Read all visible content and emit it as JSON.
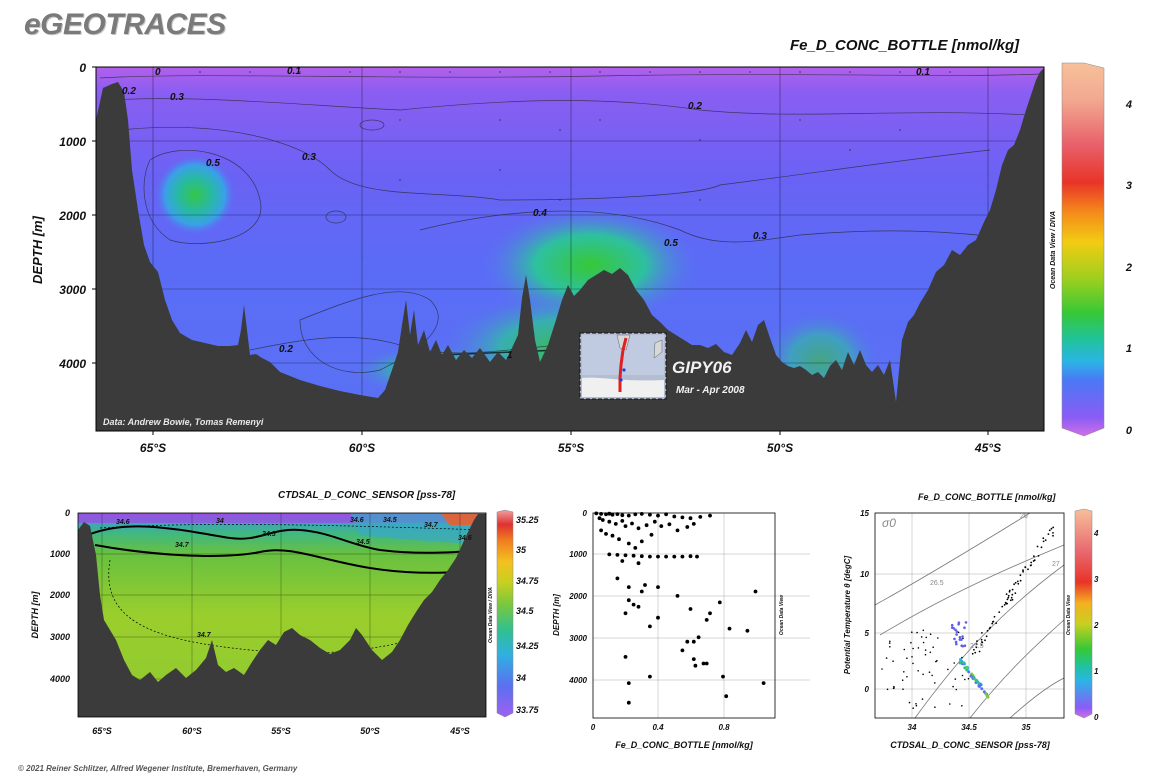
{
  "brand": "eGEOTRACES",
  "copyright": "© 2021 Reiner Schlitzer, Alfred Wegener Institute, Bremerhaven, Germany",
  "inset": {
    "cruise": "GIPY06",
    "dates": "Mar - Apr 2008"
  },
  "credit": "Data: Andrew Bowie, Tomas Remenyi",
  "odv_label": "Ocean Data View / DIVA",
  "chart_data": [
    {
      "type": "heatmap",
      "title": "Fe_D_CONC_BOTTLE [nmol/kg]",
      "ylabel": "DEPTH [m]",
      "x_ticks": [
        "65°S",
        "60°S",
        "55°S",
        "50°S",
        "45°S"
      ],
      "y_ticks": [
        "0",
        "1000",
        "2000",
        "3000",
        "4000"
      ],
      "ylim": [
        0,
        4900
      ],
      "colorbar_ticks": [
        "0",
        "1",
        "2",
        "3",
        "4"
      ],
      "colorbar_range": [
        0,
        4.5
      ],
      "contour_labels": [
        "0.1",
        "0.1",
        "0.2",
        "0.2",
        "0.2",
        "0.3",
        "0.3",
        "0.3",
        "0.4",
        "0.5",
        "0.5",
        "1",
        "0"
      ]
    },
    {
      "type": "heatmap",
      "title": "CTDSAL_D_CONC_SENSOR [pss-78]",
      "ylabel": "DEPTH [m]",
      "x_ticks": [
        "65°S",
        "60°S",
        "55°S",
        "50°S",
        "45°S"
      ],
      "y_ticks": [
        "0",
        "1000",
        "2000",
        "3000",
        "4000"
      ],
      "colorbar_ticks": [
        "35.25",
        "35",
        "34.75",
        "34.5",
        "34.25",
        "34",
        "33.75"
      ],
      "contour_labels": [
        "34.6",
        "34",
        "34.5",
        "34.7",
        "34.5",
        "34.6",
        "34.7",
        "34.5",
        "34.6",
        "34.7"
      ]
    },
    {
      "type": "scatter",
      "xlabel": "Fe_D_CONC_BOTTLE [nmol/kg]",
      "ylabel": "DEPTH [m]",
      "xlim": [
        0,
        1.1
      ],
      "ylim": [
        0,
        4700
      ],
      "x_ticks": [
        "0",
        "0.4",
        "0.8"
      ],
      "y_ticks": [
        "0",
        "1000",
        "2000",
        "3000",
        "4000"
      ],
      "points": [
        [
          0.02,
          10
        ],
        [
          0.05,
          20
        ],
        [
          0.08,
          30
        ],
        [
          0.1,
          15
        ],
        [
          0.12,
          40
        ],
        [
          0.15,
          25
        ],
        [
          0.18,
          50
        ],
        [
          0.22,
          60
        ],
        [
          0.26,
          30
        ],
        [
          0.3,
          20
        ],
        [
          0.35,
          40
        ],
        [
          0.4,
          60
        ],
        [
          0.45,
          30
        ],
        [
          0.5,
          80
        ],
        [
          0.55,
          100
        ],
        [
          0.6,
          120
        ],
        [
          0.66,
          90
        ],
        [
          0.72,
          60
        ],
        [
          0.04,
          120
        ],
        [
          0.06,
          160
        ],
        [
          0.1,
          200
        ],
        [
          0.14,
          250
        ],
        [
          0.18,
          180
        ],
        [
          0.2,
          300
        ],
        [
          0.24,
          240
        ],
        [
          0.28,
          350
        ],
        [
          0.33,
          280
        ],
        [
          0.38,
          200
        ],
        [
          0.42,
          300
        ],
        [
          0.47,
          260
        ],
        [
          0.52,
          400
        ],
        [
          0.58,
          320
        ],
        [
          0.62,
          250
        ],
        [
          0.05,
          400
        ],
        [
          0.08,
          480
        ],
        [
          0.12,
          520
        ],
        [
          0.16,
          600
        ],
        [
          0.22,
          700
        ],
        [
          0.26,
          800
        ],
        [
          0.3,
          650
        ],
        [
          0.36,
          500
        ],
        [
          0.1,
          950
        ],
        [
          0.15,
          960
        ],
        [
          0.2,
          970
        ],
        [
          0.25,
          980
        ],
        [
          0.3,
          990
        ],
        [
          0.35,
          1000
        ],
        [
          0.4,
          1000
        ],
        [
          0.45,
          1000
        ],
        [
          0.5,
          1000
        ],
        [
          0.55,
          1000
        ],
        [
          0.6,
          990
        ],
        [
          0.64,
          1000
        ],
        [
          0.18,
          1100
        ],
        [
          0.28,
          1150
        ],
        [
          0.15,
          1500
        ],
        [
          0.22,
          1700
        ],
        [
          0.3,
          1800
        ],
        [
          0.4,
          1700
        ],
        [
          0.52,
          1900
        ],
        [
          0.32,
          1650
        ],
        [
          0.22,
          2000
        ],
        [
          0.25,
          2100
        ],
        [
          0.28,
          2150
        ],
        [
          0.2,
          2300
        ],
        [
          0.6,
          2200
        ],
        [
          0.78,
          2050
        ],
        [
          0.72,
          2300
        ],
        [
          0.7,
          2450
        ],
        [
          0.84,
          2650
        ],
        [
          0.95,
          2700
        ],
        [
          0.4,
          2400
        ],
        [
          0.35,
          2600
        ],
        [
          0.58,
          2950
        ],
        [
          0.62,
          2950
        ],
        [
          0.65,
          2850
        ],
        [
          0.55,
          3150
        ],
        [
          0.62,
          3350
        ],
        [
          0.68,
          3450
        ],
        [
          0.7,
          3450
        ],
        [
          0.63,
          3500
        ],
        [
          0.8,
          3750
        ],
        [
          0.82,
          4200
        ],
        [
          1.05,
          3900
        ],
        [
          1.0,
          1800
        ],
        [
          0.35,
          3750
        ],
        [
          0.2,
          3300
        ],
        [
          0.22,
          3900
        ],
        [
          0.22,
          4350
        ]
      ]
    },
    {
      "type": "scatter",
      "xlabel": "CTDSAL_D_CONC_SENSOR [pss-78]",
      "ylabel": "Potential Temperature θ [degC]",
      "title": "Fe_D_CONC_BOTTLE [nmol/kg]",
      "xlim": [
        33.7,
        35.35
      ],
      "ylim": [
        -2,
        15
      ],
      "x_ticks": [
        "34",
        "34.5",
        "35"
      ],
      "y_ticks": [
        "15",
        "10",
        "5",
        "0"
      ],
      "density_labels": [
        "σ0",
        "26",
        "26.5",
        "27",
        "27.5"
      ],
      "colorbar_ticks": [
        "4",
        "3",
        "2",
        "1",
        "0"
      ]
    }
  ]
}
